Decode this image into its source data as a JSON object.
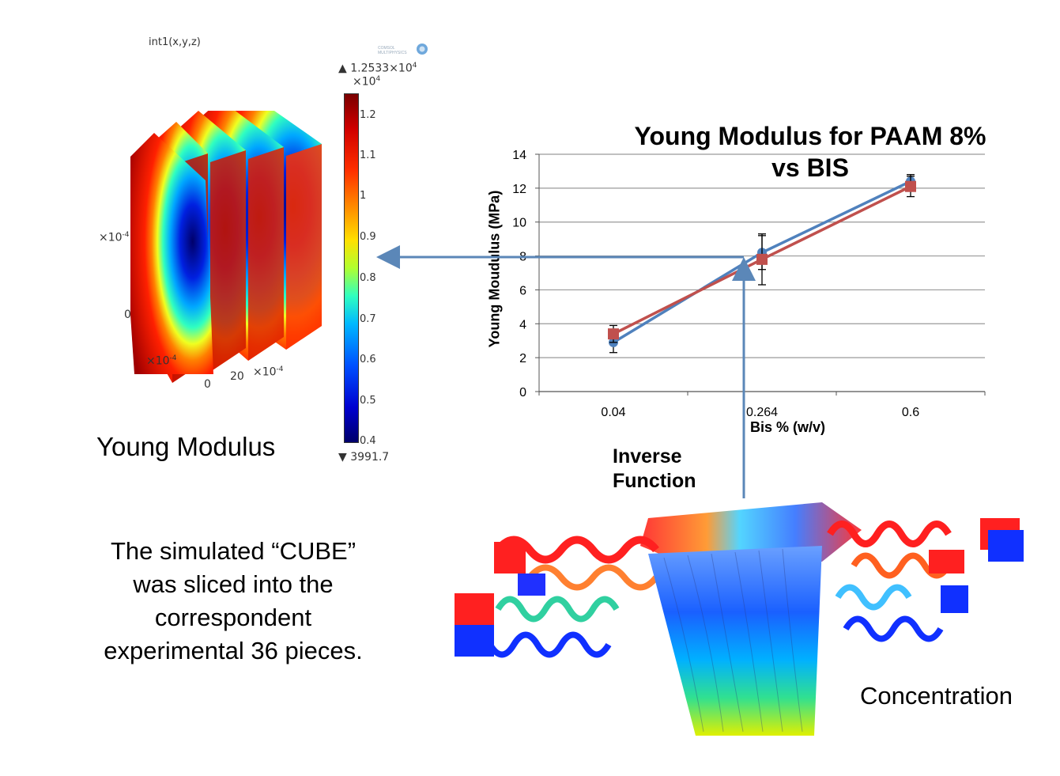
{
  "left_plot": {
    "title": "int1(x,y,z)",
    "colorbar": {
      "max_label": "▲ 1.2533×10",
      "max_exp": "4",
      "scale_label": "×10",
      "scale_exp": "4",
      "ticks": [
        "1.2",
        "1.1",
        "1",
        "0.9",
        "0.8",
        "0.7",
        "0.6",
        "0.5",
        "0.4"
      ],
      "min_label": "▼ 3991.7"
    },
    "axis_labels": {
      "y_scale": "×10",
      "y_scale_exp": "-4",
      "zero_left": "0",
      "x_scale": "×10",
      "x_scale_exp": "-4",
      "x_zero": "0",
      "x_20": "20",
      "z_scale": "×10",
      "z_scale_exp": "-4"
    },
    "logo_text": "COMSOL MULTIPHYSICS",
    "caption": "Young Modulus"
  },
  "description": [
    "The simulated “CUBE”",
    "was sliced into the",
    "correspondent",
    "experimental 36 pieces."
  ],
  "chart_data": {
    "type": "line",
    "title_line1": "Young Modulus for PAAM 8%",
    "title_line2": "vs BIS",
    "xlabel": "Bis % (w/v)",
    "ylabel": "Young Moudulus (MPa)",
    "categories": [
      "0.04",
      "0.264",
      "0.6"
    ],
    "ylim": [
      0,
      14
    ],
    "yticks": [
      "0",
      "2",
      "4",
      "6",
      "8",
      "10",
      "12",
      "14"
    ],
    "grid": true,
    "series": [
      {
        "values": [
          2.9,
          8.2,
          12.4
        ],
        "color": "#4f81bd",
        "marker": "circle",
        "error": [
          0.6,
          1.0,
          0.4
        ]
      },
      {
        "values": [
          3.4,
          7.8,
          12.1
        ],
        "color": "#c0504d",
        "marker": "square",
        "error": [
          0.5,
          1.5,
          0.6
        ]
      }
    ]
  },
  "inverse_function": [
    "Inverse",
    "Function"
  ],
  "bottom_caption": "Concentration",
  "colors": {
    "arrow": "#5b87b8",
    "series1": "#4f81bd",
    "series2": "#c0504d"
  }
}
